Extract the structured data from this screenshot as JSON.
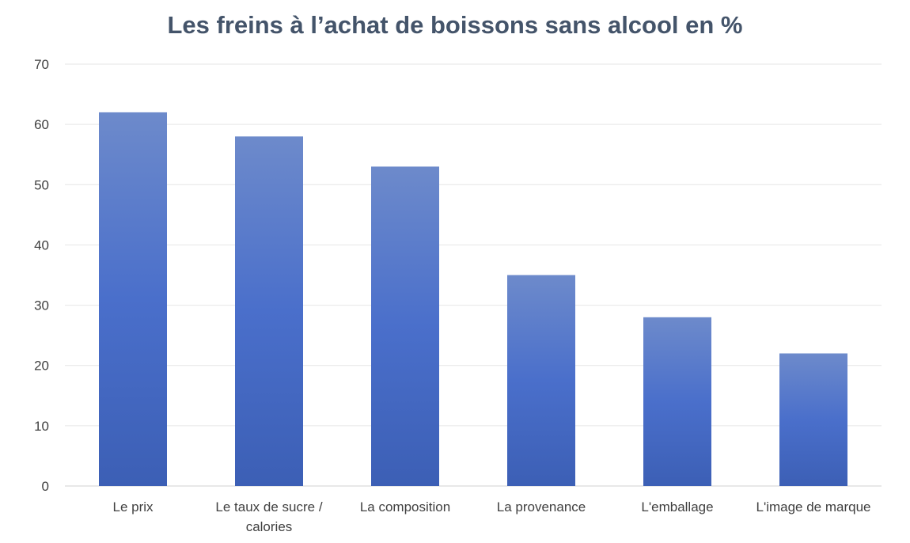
{
  "chart_data": {
    "type": "bar",
    "title": "Les freins à l’achat de boissons sans alcool en %",
    "categories": [
      "Le prix",
      "Le taux de sucre / calories",
      "La composition",
      "La provenance",
      "L'emballage",
      "L'image de marque"
    ],
    "values": [
      62,
      58,
      53,
      35,
      28,
      22
    ],
    "xlabel": "",
    "ylabel": "",
    "ylim": [
      0,
      70
    ],
    "yticks": [
      0,
      10,
      20,
      30,
      40,
      50,
      60,
      70
    ],
    "grid": true,
    "legend": "none",
    "bar_color_top": "#6d8acb",
    "bar_color_bottom": "#3c5fb5",
    "grid_color": "#e6e6e6",
    "title_color": "#44546a"
  }
}
